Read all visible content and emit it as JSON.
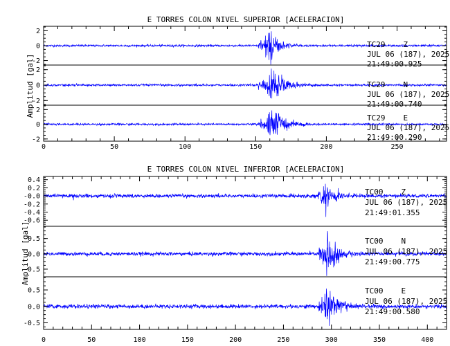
{
  "chart_data": [
    {
      "type": "line",
      "title": "E TORRES COLON NIVEL SUPERIOR [ACELERACION]",
      "ylabel": "Amplitud [gal]",
      "xlabel": "",
      "xlim": [
        0,
        285
      ],
      "xticks": [
        "0",
        "50",
        "100",
        "150",
        "200",
        "250"
      ],
      "xtick_values": [
        0,
        50,
        100,
        150,
        200,
        250
      ],
      "grid": false,
      "line_color": "#0000ff",
      "series": [
        {
          "station": "TC29",
          "component": "Z",
          "date": "JUL 06 (187), 2025",
          "time": "21:49:00.925",
          "ylim": [
            -2.6,
            2.6
          ],
          "yticks": [
            "-2",
            "0",
            "2"
          ],
          "ytick_values": [
            -2,
            0,
            2
          ],
          "noise": 0.07,
          "event_start": 152,
          "peak_time": 160,
          "peak": 2.4,
          "decay": 7
        },
        {
          "station": "TC29",
          "component": "N",
          "date": "JUL 06 (187), 2025",
          "time": "21:49:00.740",
          "ylim": [
            -2.6,
            2.6
          ],
          "yticks": [
            "-2",
            "0",
            "2"
          ],
          "ytick_values": [
            -2,
            0,
            2
          ],
          "noise": 0.07,
          "event_start": 152,
          "peak_time": 162,
          "peak": 2.4,
          "decay": 10
        },
        {
          "station": "TC29",
          "component": "E",
          "date": "JUL 06 (187), 2025",
          "time": "21:49:00.290",
          "ylim": [
            -2.3,
            2.6
          ],
          "yticks": [
            "-2",
            "0",
            "2"
          ],
          "ytick_values": [
            -2,
            0,
            2
          ],
          "noise": 0.07,
          "event_start": 152,
          "peak_time": 161,
          "peak": 2.5,
          "decay": 10
        }
      ]
    },
    {
      "type": "line",
      "title": "E TORRES COLON NIVEL INFERIOR [ACELERACION]",
      "ylabel": "Amplitud [gal]",
      "xlabel": "",
      "xlim": [
        0,
        420
      ],
      "xticks": [
        "0",
        "50",
        "100",
        "150",
        "200",
        "250",
        "300",
        "350",
        "400"
      ],
      "xtick_values": [
        0,
        50,
        100,
        150,
        200,
        250,
        300,
        350,
        400
      ],
      "grid": false,
      "line_color": "#0000ff",
      "series": [
        {
          "station": "TC00",
          "component": "Z",
          "date": "JUL 06 (187), 2025",
          "time": "21:49:01.355",
          "ylim": [
            -0.75,
            0.48
          ],
          "yticks": [
            "0.4",
            "0.2",
            "-0.0",
            "-0.2",
            "-0.4",
            "-0.6"
          ],
          "ytick_values": [
            0.4,
            0.2,
            0,
            -0.2,
            -0.4,
            -0.6
          ],
          "noise": 0.022,
          "event_start": 286,
          "peak_time": 294,
          "peak": 0.45,
          "decay": 12
        },
        {
          "station": "TC00",
          "component": "N",
          "date": "JUL 06 (187), 2025",
          "time": "21:49:00.775",
          "ylim": [
            -0.75,
            0.9
          ],
          "yticks": [
            "0.5",
            "0.0",
            "-0.5"
          ],
          "ytick_values": [
            0.5,
            0,
            -0.5
          ],
          "noise": 0.03,
          "event_start": 287,
          "peak_time": 295,
          "peak": 0.8,
          "decay": 11
        },
        {
          "station": "TC00",
          "component": "E",
          "date": "JUL 06 (187), 2025",
          "time": "21:49:00.580",
          "ylim": [
            -0.7,
            0.9
          ],
          "yticks": [
            "0.5",
            "0.0",
            "-0.5"
          ],
          "ytick_values": [
            0.5,
            0,
            -0.5
          ],
          "noise": 0.03,
          "event_start": 287,
          "peak_time": 296,
          "peak": 0.75,
          "decay": 11
        }
      ]
    }
  ]
}
